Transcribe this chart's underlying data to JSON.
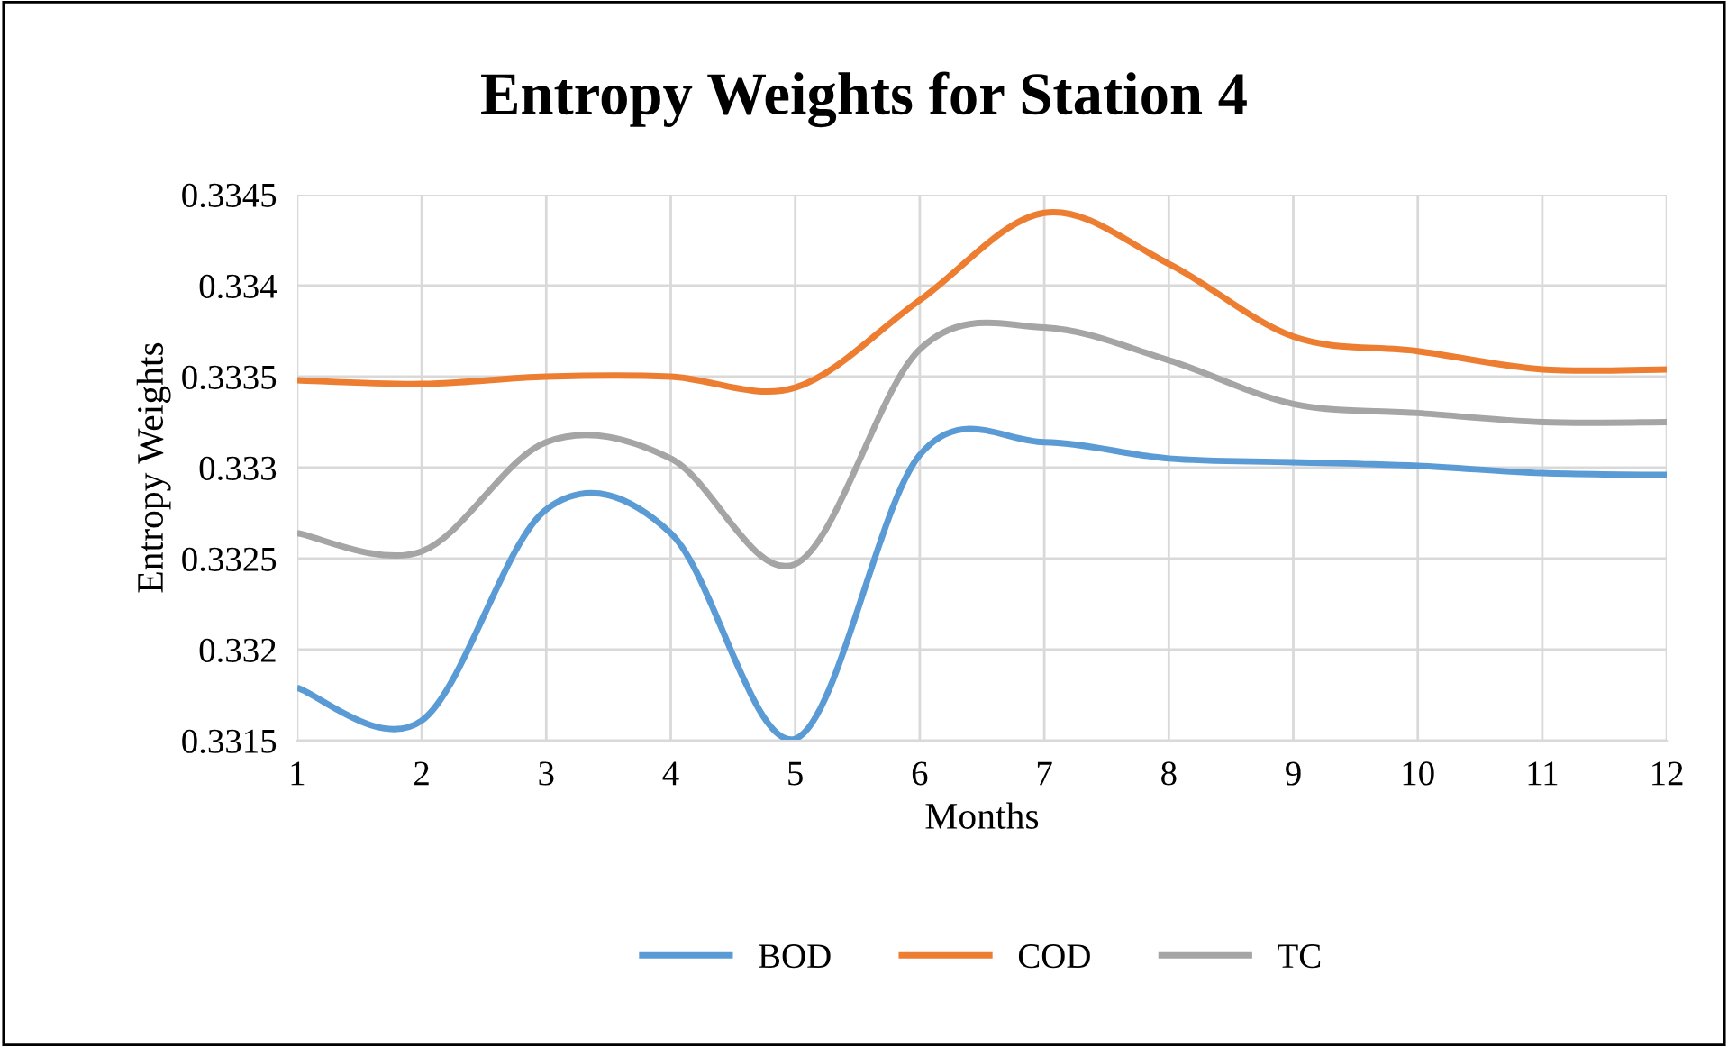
{
  "chart_data": {
    "type": "line",
    "title": "Entropy Weights for Station 4",
    "xlabel": "Months",
    "ylabel": "Entropy Weights",
    "x": [
      1,
      2,
      3,
      4,
      5,
      6,
      7,
      8,
      9,
      10,
      11,
      12
    ],
    "series": [
      {
        "name": "BOD",
        "color": "#5b9bd5",
        "values": [
          0.33179,
          0.33161,
          0.33277,
          0.33264,
          0.33151,
          0.33307,
          0.33314,
          0.33305,
          0.33303,
          0.33301,
          0.33297,
          0.33296
        ]
      },
      {
        "name": "COD",
        "color": "#ed7d31",
        "values": [
          0.33348,
          0.33346,
          0.3335,
          0.3335,
          0.33344,
          0.33392,
          0.3344,
          0.33412,
          0.33372,
          0.33364,
          0.33354,
          0.33354
        ]
      },
      {
        "name": "TC",
        "color": "#a5a5a5",
        "values": [
          0.33264,
          0.33254,
          0.33314,
          0.33305,
          0.33247,
          0.33365,
          0.33377,
          0.33359,
          0.33335,
          0.3333,
          0.33325,
          0.33325
        ]
      }
    ],
    "xlim": [
      1,
      12
    ],
    "xticks": [
      1,
      2,
      3,
      4,
      5,
      6,
      7,
      8,
      9,
      10,
      11,
      12
    ],
    "ylim": [
      0.3315,
      0.3345
    ],
    "yticks": [
      0.3315,
      0.332,
      0.3325,
      0.333,
      0.3335,
      0.334,
      0.3345
    ],
    "grid": true,
    "legend": "bottom",
    "marker": "none",
    "line_style": "solid"
  }
}
